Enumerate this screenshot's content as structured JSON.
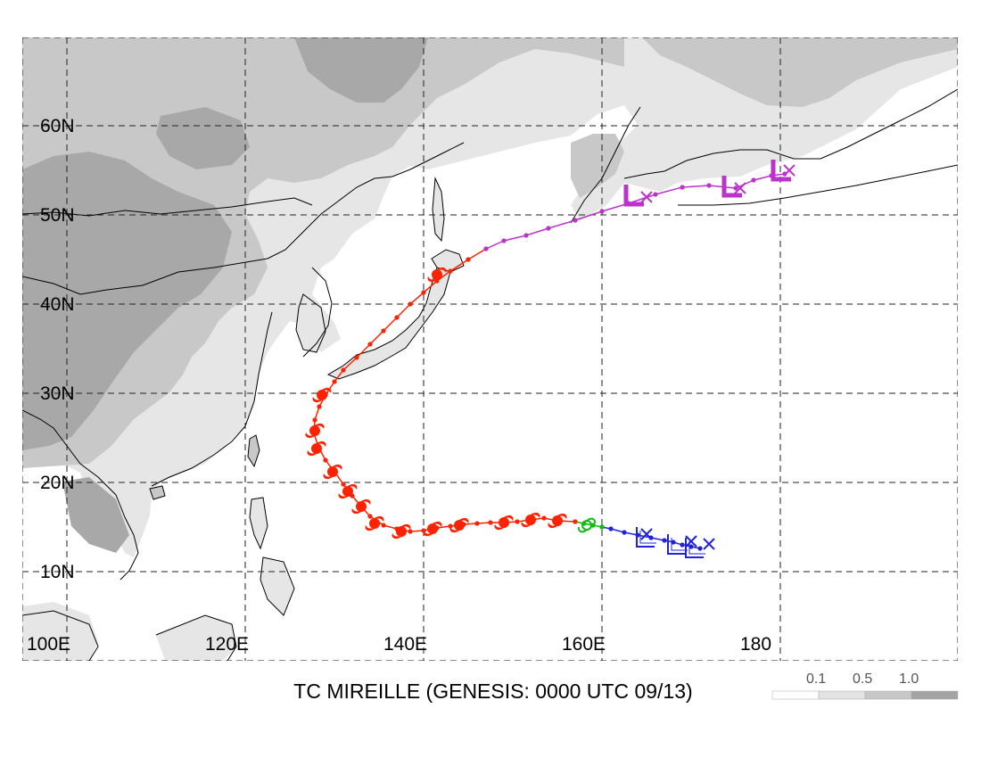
{
  "title": "TC MIREILLE (GENESIS: 0000 UTC 09/13)",
  "lat_labels": [
    {
      "lat": 60,
      "text": "60N"
    },
    {
      "lat": 50,
      "text": "50N"
    },
    {
      "lat": 40,
      "text": "40N"
    },
    {
      "lat": 30,
      "text": "30N"
    },
    {
      "lat": 20,
      "text": "20N"
    },
    {
      "lat": 10,
      "text": "10N"
    }
  ],
  "lon_labels": [
    {
      "lon": 100,
      "text": "100E"
    },
    {
      "lon": 120,
      "text": "120E"
    },
    {
      "lon": 140,
      "text": "140E"
    },
    {
      "lon": 160,
      "text": "160E"
    },
    {
      "lon": 180,
      "text": "180"
    }
  ],
  "legend": {
    "labels": [
      "0.1",
      "0.5",
      "1.0"
    ],
    "colors": [
      "#ffffff",
      "#e3e3e3",
      "#c7c7c7",
      "#a4a4a4"
    ]
  },
  "colors": {
    "depression": "#2222dd",
    "storm": "#11bb11",
    "typhoon": "#ff2200",
    "extratropical": "#bb33cc",
    "land_light": "#e6e6e6",
    "land_mid": "#c8c8c8",
    "land_dark": "#a8a8a8"
  },
  "track": {
    "stages": [
      {
        "stage": "tropical-depression",
        "symbol_icon": "low-l-icon",
        "points": [
          [
            171.0,
            12.6
          ],
          [
            170.0,
            12.8
          ],
          [
            169.0,
            13.0
          ],
          [
            168.0,
            13.3
          ],
          [
            167.0,
            13.5
          ],
          [
            165.5,
            13.8
          ],
          [
            164.0,
            14.1
          ],
          [
            162.5,
            14.4
          ],
          [
            161.0,
            14.8
          ],
          [
            160.0,
            15.0
          ]
        ]
      },
      {
        "stage": "tropical-storm",
        "symbol_icon": "tropical-storm-icon",
        "points": [
          [
            160.0,
            15.0
          ],
          [
            159.0,
            15.2
          ],
          [
            158.0,
            15.4
          ],
          [
            157.0,
            15.6
          ]
        ]
      },
      {
        "stage": "typhoon",
        "symbol_icon": "typhoon-icon",
        "points": [
          [
            157.0,
            15.6
          ],
          [
            155.0,
            15.7
          ],
          [
            153.5,
            16.0
          ],
          [
            152.0,
            15.8
          ],
          [
            150.5,
            15.6
          ],
          [
            149.0,
            15.5
          ],
          [
            147.5,
            15.5
          ],
          [
            146.0,
            15.4
          ],
          [
            144.5,
            15.3
          ],
          [
            143.0,
            15.1
          ],
          [
            141.5,
            14.9
          ],
          [
            140.0,
            14.6
          ],
          [
            138.5,
            14.5
          ],
          [
            137.0,
            14.8
          ],
          [
            135.5,
            15.2
          ],
          [
            134.0,
            16.2
          ],
          [
            133.0,
            17.3
          ],
          [
            132.0,
            18.5
          ],
          [
            131.0,
            19.8
          ],
          [
            130.0,
            21.2
          ],
          [
            129.0,
            22.5
          ],
          [
            128.2,
            24.0
          ],
          [
            127.7,
            25.5
          ],
          [
            127.8,
            27.0
          ],
          [
            128.3,
            28.5
          ],
          [
            129.0,
            29.8
          ],
          [
            130.0,
            31.3
          ],
          [
            131.0,
            32.6
          ],
          [
            132.5,
            34.0
          ],
          [
            134.0,
            35.5
          ],
          [
            135.5,
            37.0
          ],
          [
            137.0,
            38.5
          ],
          [
            138.5,
            40.0
          ],
          [
            140.0,
            41.3
          ],
          [
            141.5,
            42.6
          ],
          [
            143.0,
            43.7
          ],
          [
            145.0,
            45.0
          ],
          [
            147.0,
            46.2
          ]
        ]
      },
      {
        "stage": "extratropical",
        "symbol_icon": "low-l-icon",
        "points": [
          [
            147.0,
            46.2
          ],
          [
            149.0,
            47.1
          ],
          [
            151.5,
            47.7
          ],
          [
            154.0,
            48.5
          ],
          [
            157.0,
            49.4
          ],
          [
            160.0,
            50.4
          ],
          [
            163.0,
            51.3
          ],
          [
            166.0,
            52.3
          ],
          [
            169.0,
            53.1
          ],
          [
            172.0,
            53.3
          ],
          [
            175.0,
            53.0
          ],
          [
            177.0,
            53.9
          ],
          [
            179.0,
            54.4
          ],
          [
            180.5,
            54.6
          ]
        ]
      }
    ]
  }
}
